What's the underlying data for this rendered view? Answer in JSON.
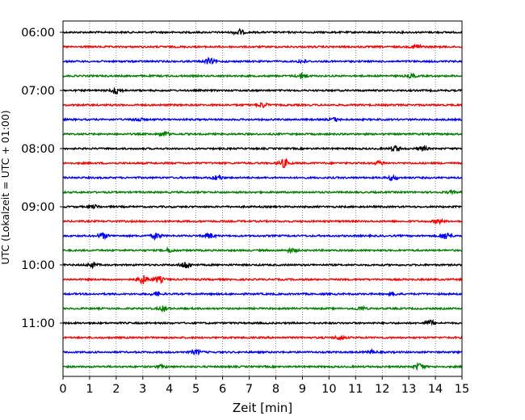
{
  "chart_data": {
    "type": "line",
    "title": "",
    "xlabel": "Zeit  [min]",
    "ylabel": "UTC (Lokalzeit = UTC + 01:00)",
    "xlim": [
      0,
      15
    ],
    "x_ticks": [
      "0",
      "1",
      "2",
      "3",
      "4",
      "5",
      "6",
      "7",
      "8",
      "9",
      "10",
      "11",
      "12",
      "13",
      "14",
      "15"
    ],
    "y_tick_labels": [
      "06:00",
      "07:00",
      "08:00",
      "09:00",
      "10:00",
      "11:00"
    ],
    "trace_offset_minutes": 15,
    "grid": "vertical dotted at each minute",
    "trace_colors": [
      "#000000",
      "#ff0000",
      "#0000ff",
      "#008000"
    ],
    "series": [
      {
        "start": "06:00",
        "bursts": [
          [
            6.6,
            1.6
          ]
        ]
      },
      {
        "start": "06:15",
        "bursts": [
          [
            13.3,
            1.2
          ]
        ]
      },
      {
        "start": "06:30",
        "bursts": [
          [
            5.5,
            1.5
          ],
          [
            9.0,
            0.8
          ]
        ]
      },
      {
        "start": "06:45",
        "bursts": [
          [
            9.0,
            1.6
          ],
          [
            13.1,
            0.8
          ]
        ]
      },
      {
        "start": "07:00",
        "bursts": [
          [
            2.0,
            1.8
          ]
        ]
      },
      {
        "start": "07:15",
        "bursts": [
          [
            7.5,
            1.3
          ]
        ]
      },
      {
        "start": "07:30",
        "bursts": [
          [
            2.8,
            1.0
          ],
          [
            10.2,
            0.9
          ]
        ]
      },
      {
        "start": "07:45",
        "bursts": [
          [
            3.8,
            1.4
          ]
        ]
      },
      {
        "start": "08:00",
        "bursts": [
          [
            12.5,
            1.6
          ],
          [
            13.5,
            1.2
          ]
        ]
      },
      {
        "start": "08:15",
        "bursts": [
          [
            8.3,
            2.2
          ],
          [
            11.9,
            1.0
          ]
        ]
      },
      {
        "start": "08:30",
        "bursts": [
          [
            5.8,
            1.2
          ],
          [
            12.4,
            1.2
          ]
        ]
      },
      {
        "start": "08:45",
        "bursts": [
          [
            14.6,
            0.6
          ]
        ]
      },
      {
        "start": "09:00",
        "bursts": [
          [
            1.2,
            0.8
          ]
        ]
      },
      {
        "start": "09:15",
        "bursts": [
          [
            14.1,
            1.0
          ]
        ]
      },
      {
        "start": "09:30",
        "bursts": [
          [
            1.5,
            1.5
          ],
          [
            3.5,
            1.5
          ],
          [
            5.5,
            1.4
          ],
          [
            14.4,
            2.0
          ]
        ]
      },
      {
        "start": "09:45",
        "bursts": [
          [
            4.0,
            1.0
          ],
          [
            8.6,
            0.9
          ]
        ]
      },
      {
        "start": "10:00",
        "bursts": [
          [
            4.6,
            1.9
          ],
          [
            1.1,
            1.2
          ]
        ]
      },
      {
        "start": "10:15",
        "bursts": [
          [
            3.0,
            2.2
          ],
          [
            3.6,
            1.6
          ]
        ]
      },
      {
        "start": "10:30",
        "bursts": [
          [
            3.5,
            1.0
          ],
          [
            12.4,
            0.8
          ]
        ]
      },
      {
        "start": "10:45",
        "bursts": [
          [
            3.8,
            1.3
          ],
          [
            11.2,
            0.9
          ]
        ]
      },
      {
        "start": "11:00",
        "bursts": [
          [
            13.8,
            1.4
          ]
        ]
      },
      {
        "start": "11:15",
        "bursts": [
          [
            10.4,
            1.0
          ]
        ]
      },
      {
        "start": "11:30",
        "bursts": [
          [
            5.0,
            1.2
          ],
          [
            11.6,
            0.9
          ]
        ]
      },
      {
        "start": "11:45",
        "bursts": [
          [
            13.4,
            1.6
          ],
          [
            3.7,
            0.7
          ]
        ]
      }
    ]
  }
}
